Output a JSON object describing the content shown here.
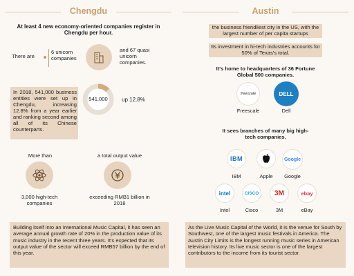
{
  "left": {
    "title": "Chengdu",
    "headline": "At least 4 new economy-oriented companies register in Chengdu per hour.",
    "there_are": "There are",
    "unicorn": "6 unicorn companies",
    "quasi": "and 67 quasi unicorn companies.",
    "business_text": "In 2018, 541,000 business entities were set up in Chengdu, increasing 12.8% from a year earlier and ranking second among all of its Chinese counterparts.",
    "ring_value": "541,000",
    "ring_growth": "up 12.8%",
    "ring_fraction": 0.128,
    "more_than": "More than",
    "hightech": "3,000 high-tech companies",
    "total_output": "a total output value",
    "exceeding": "exceeding RMB1 billion in 2018",
    "music_text": "Building itself into an International Music Capital, it has seen an average annual growth rate of 20% in the production value of its music industry in the recent three years. It's expected that its output value of the sector will exceed RMB57 billion by the end of this year."
  },
  "right": {
    "title": "Austin",
    "hl1": "the business friendliest city in the US, with the largest number of per capita startups",
    "hl2": "Its investment in hi-tech industries accounts for 50% of Texas's total.",
    "hq": "It's home to headquarters of 36 Fortune Global 500 companies.",
    "freescale_logo": "freescale",
    "freescale": "Freescale",
    "dell_logo": "DELL",
    "dell": "Dell",
    "branches": "It sees branches of many big high-tech companies.",
    "ibm_logo": "IBM",
    "ibm": "IBM",
    "apple": "Apple",
    "google_logo": "Google",
    "google": "Google",
    "intel_logo": "intel",
    "intel": "Intel",
    "cisco_logo": "CISCO",
    "cisco": "Cisco",
    "threem_logo": "3M",
    "threem": "3M",
    "ebay_logo": "ebay",
    "ebay": "eBay",
    "music_text": "As the Live Music Capital of the World, it is the venue for South by Southwest, one of the largest music festivals in America. The Austin City Limits is the longest running music series in American television history. Its live music sector is one of the largest contributors to the income from its tourist sector."
  },
  "colors": {
    "accent": "#c9a06d",
    "tan": "#e9d7c3"
  }
}
